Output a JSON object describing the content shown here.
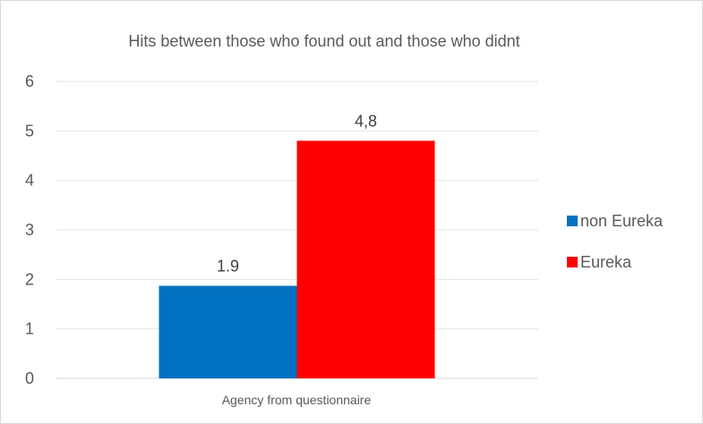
{
  "chart_data": {
    "type": "bar",
    "title": "Hits between those who found out and those who didnt",
    "categories": [
      "Agency from questionnaire"
    ],
    "series": [
      {
        "name": "non Eureka",
        "values": [
          1.87
        ],
        "label": "1.9",
        "color": "#0070C0"
      },
      {
        "name": "Eureka",
        "values": [
          4.8
        ],
        "label": "4,8",
        "color": "#FF0000"
      }
    ],
    "ylim": [
      0,
      6
    ],
    "yticks": [
      "0",
      "1",
      "2",
      "3",
      "4",
      "5",
      "6"
    ],
    "grid": true,
    "legend_position": "right"
  }
}
